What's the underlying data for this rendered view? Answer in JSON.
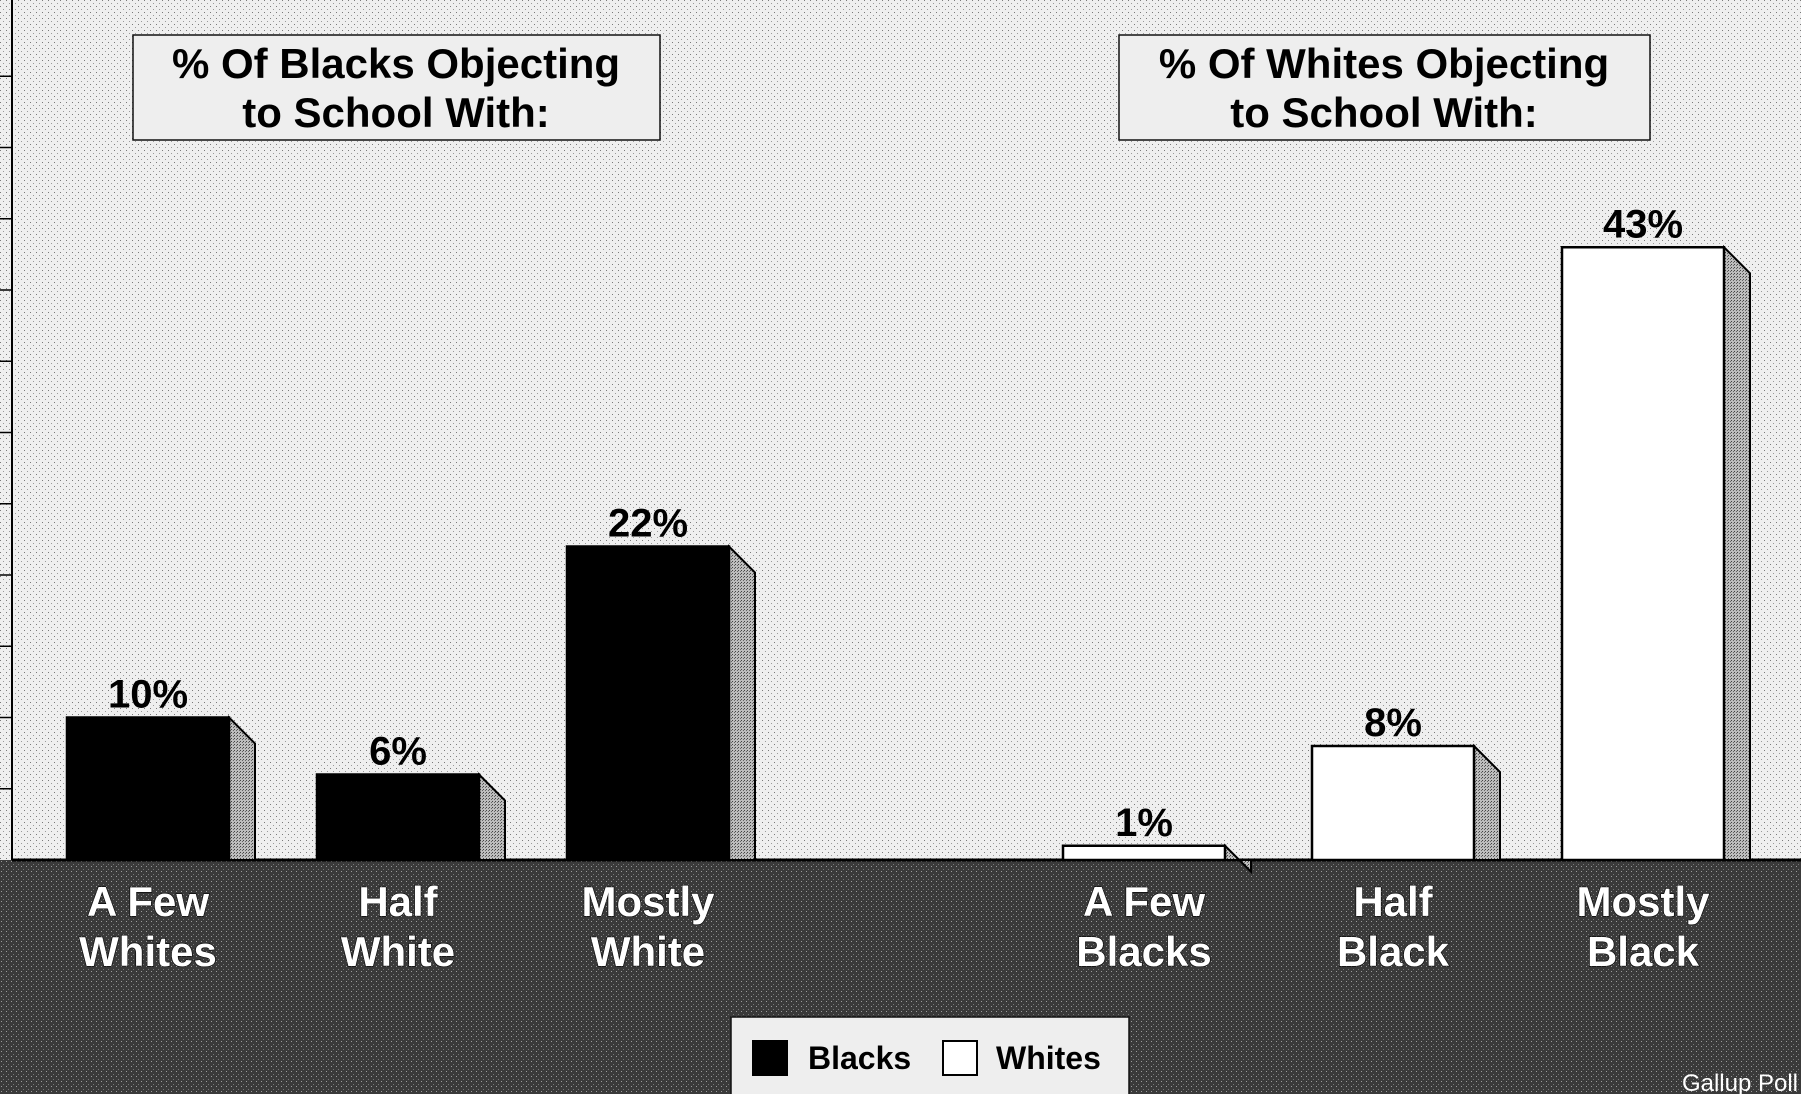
{
  "chart_data": {
    "type": "bar",
    "annotations": [
      "% Of Blacks Objecting\nto School With:",
      "% Of Whites Objecting\nto School With:"
    ],
    "categories": [
      "A Few\nWhites",
      "Half\nWhite",
      "Mostly\nWhite",
      "A Few\nBlacks",
      "Half\nBlack",
      "Mostly\nBlack"
    ],
    "series": [
      {
        "name": "Blacks",
        "values": [
          10,
          6,
          22,
          null,
          null,
          null
        ],
        "labels": [
          "10%",
          "6%",
          "22%",
          "",
          "",
          ""
        ]
      },
      {
        "name": "Whites",
        "values": [
          null,
          null,
          null,
          1,
          8,
          43
        ],
        "labels": [
          "",
          "",
          "",
          "1%",
          "8%",
          "43%"
        ]
      }
    ],
    "legend": {
      "items": [
        "Blacks",
        "Whites"
      ],
      "position": "bottom-center"
    },
    "source": "Gallup Poll",
    "ylim": [
      0,
      50
    ],
    "grid": false,
    "colors": {
      "Blacks": "#000000",
      "Whites": "#ffffff",
      "background": "#dcdcdc",
      "floor": "#3a3a3a"
    }
  }
}
